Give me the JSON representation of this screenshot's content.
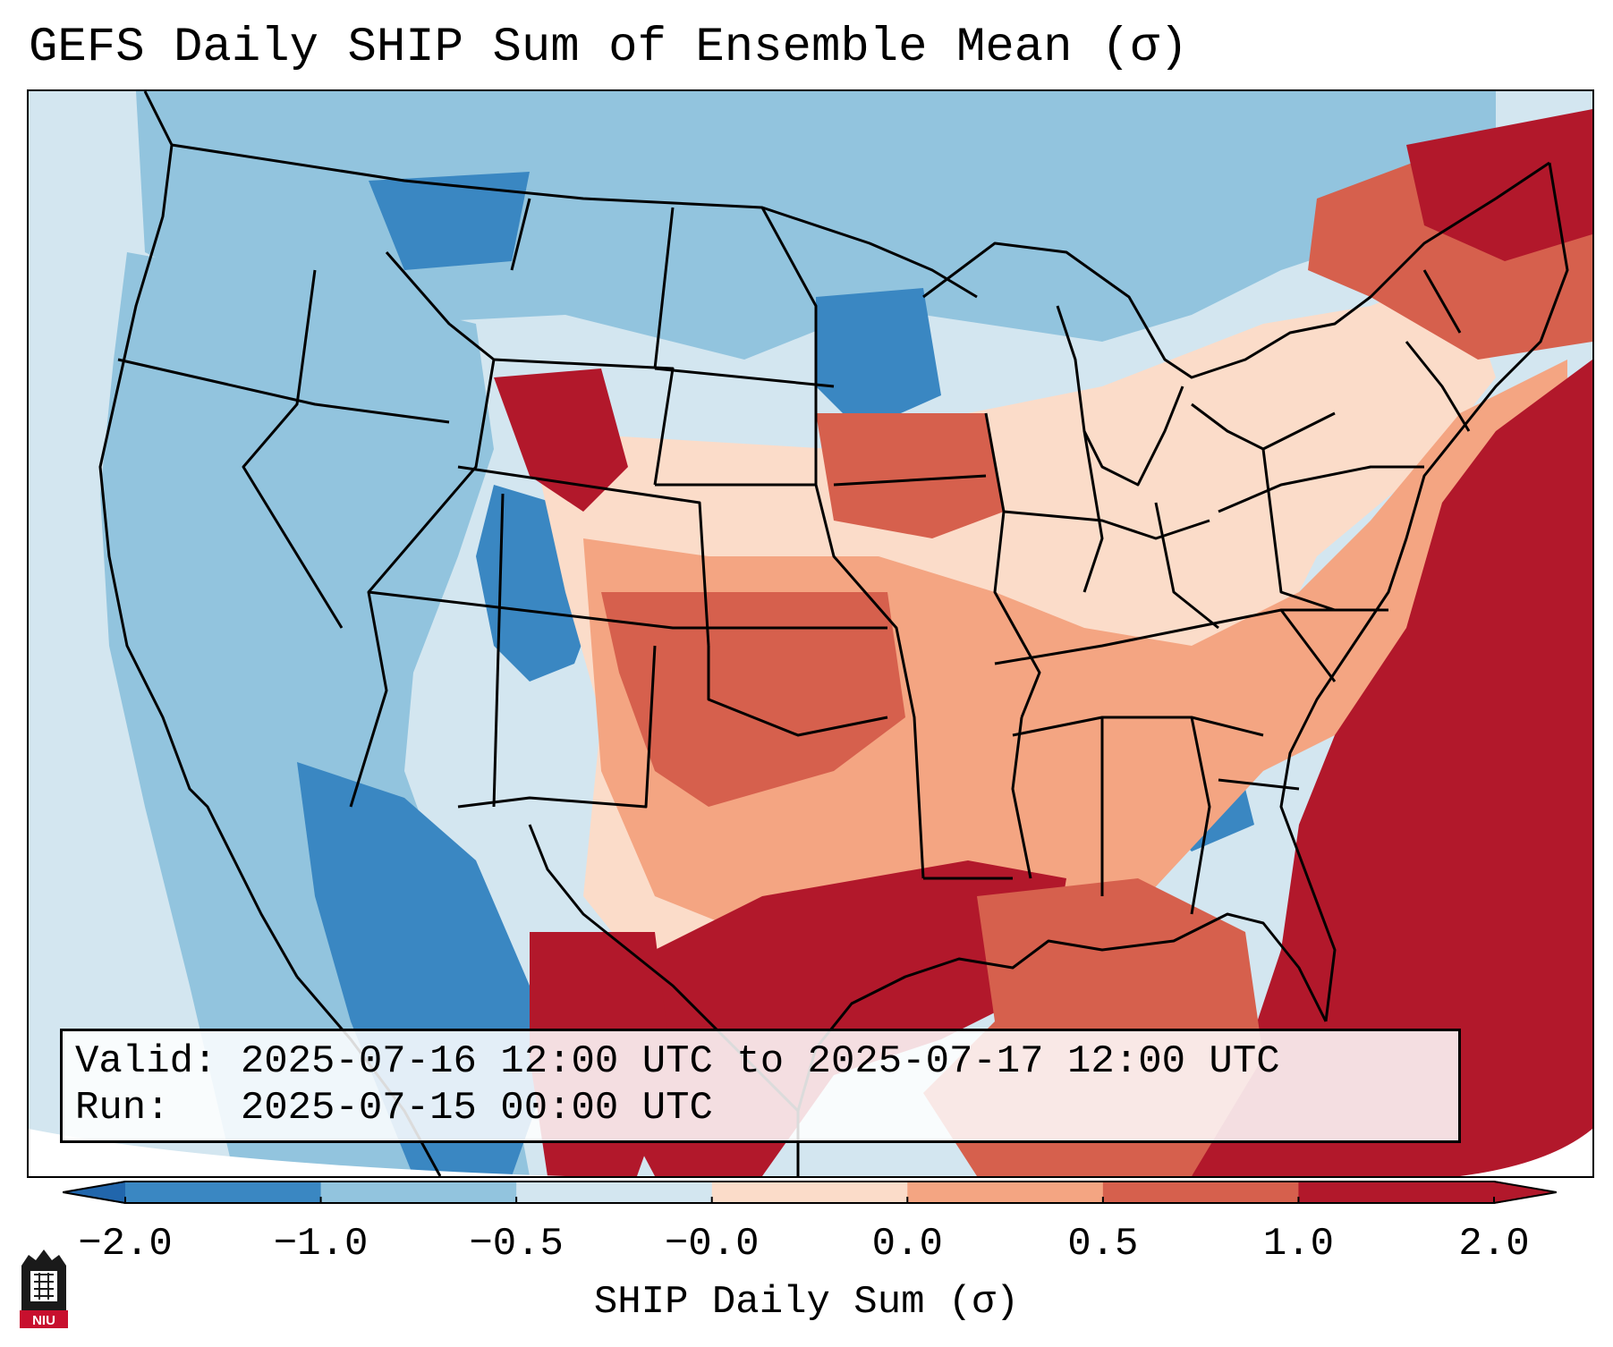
{
  "title": "GEFS Daily SHIP Sum of Ensemble Mean (σ)",
  "info": {
    "valid_label": "Valid:",
    "valid_value": "2025-07-16 12:00 UTC to 2025-07-17 12:00 UTC",
    "run_label": "Run:",
    "run_value": "2025-07-15 00:00 UTC"
  },
  "colorbar": {
    "title": "SHIP Daily Sum (σ)",
    "tick_labels": [
      "−2.0",
      "−1.0",
      "−0.5",
      "−0.0",
      "0.0",
      "0.5",
      "1.0",
      "2.0"
    ],
    "colors": [
      "#3a87c2",
      "#92c4de",
      "#d3e6f0",
      "#fbdcc9",
      "#f4a582",
      "#d6604d",
      "#b2182b"
    ],
    "extend_low_color": "#2166ac",
    "extend_high_color": "#b2182b"
  },
  "map": {
    "region": "Contiguous United States",
    "ocean_color": "#d3e6f0",
    "border_color": "#000000"
  },
  "logo": {
    "text": "NIU"
  }
}
